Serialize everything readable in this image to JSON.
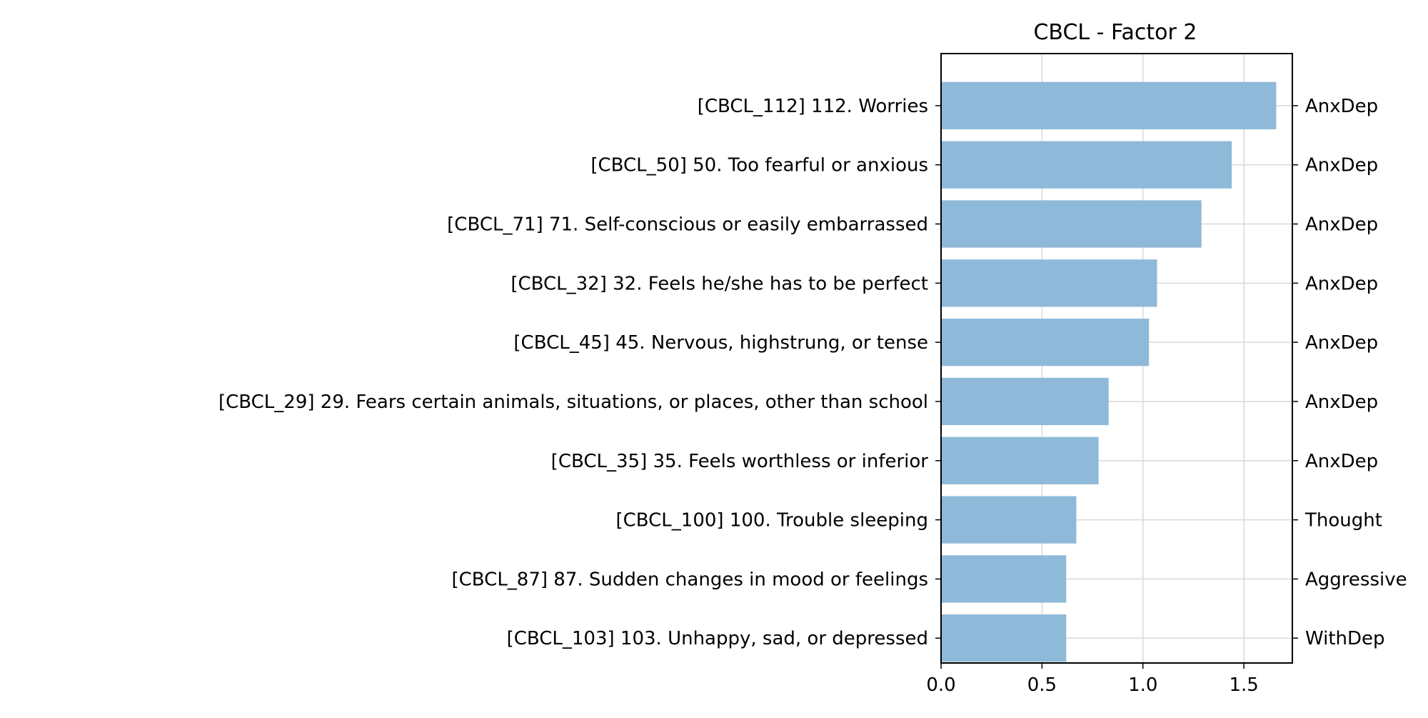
{
  "chart_data": {
    "type": "bar",
    "orientation": "horizontal",
    "title": "CBCL - Factor 2",
    "categories": [
      "[CBCL_112] 112. Worries",
      "[CBCL_50] 50. Too fearful or anxious",
      "[CBCL_71] 71. Self-conscious or easily embarrassed",
      "[CBCL_32] 32. Feels he/she has to be perfect",
      "[CBCL_45] 45. Nervous, highstrung, or tense",
      "[CBCL_29] 29. Fears certain animals, situations, or places, other than school",
      "[CBCL_35] 35. Feels worthless or inferior",
      "[CBCL_100] 100. Trouble sleeping",
      "[CBCL_87] 87. Sudden changes in mood or feelings",
      "[CBCL_103] 103. Unhappy, sad, or depressed"
    ],
    "values": [
      1.66,
      1.44,
      1.29,
      1.07,
      1.03,
      0.83,
      0.78,
      0.67,
      0.62,
      0.62
    ],
    "right_labels": [
      "AnxDep",
      "AnxDep",
      "AnxDep",
      "AnxDep",
      "AnxDep",
      "AnxDep",
      "AnxDep",
      "Thought",
      "Aggressive",
      "WithDep"
    ],
    "xlim": [
      0,
      1.74
    ],
    "xticks": [
      0.0,
      0.5,
      1.0,
      1.5
    ],
    "xtick_labels": [
      "0.0",
      "0.5",
      "1.0",
      "1.5"
    ],
    "grid": true,
    "xlabel": "",
    "ylabel": "",
    "colors": {
      "bar": "#8fb9d9",
      "grid": "#d9d9d9",
      "axis": "#000000"
    }
  }
}
